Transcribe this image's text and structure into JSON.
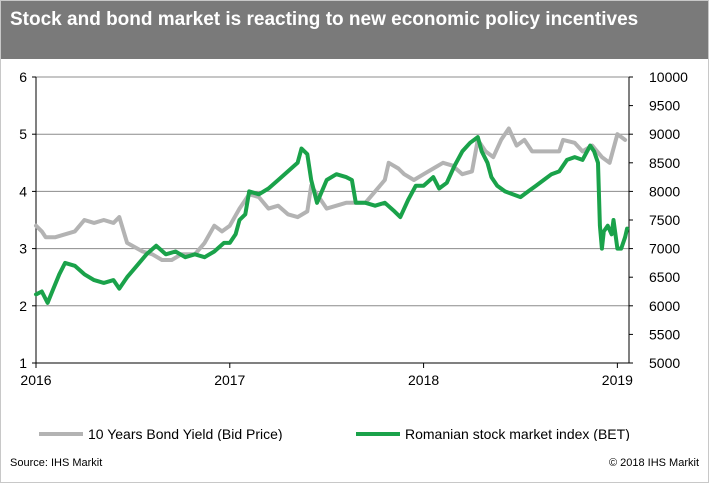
{
  "title": "Stock and bond market is reacting to new economic policy incentives",
  "source": "Source: IHS Markit",
  "copyright": "© 2018 IHS Markit",
  "colors": {
    "bond": "#b3b3b3",
    "stock": "#1aa24a",
    "header": "#7a7a7a"
  },
  "chart_data": {
    "type": "line",
    "x_ticks": [
      "2016",
      "2017",
      "2018",
      "2019"
    ],
    "y_left": {
      "range": [
        1,
        6
      ],
      "ticks": [
        "1",
        "2",
        "3",
        "4",
        "5",
        "6"
      ]
    },
    "y_right": {
      "range": [
        5000,
        10000
      ],
      "ticks": [
        "5000",
        "5500",
        "6000",
        "6500",
        "7000",
        "7500",
        "8000",
        "8500",
        "9000",
        "9500",
        "10000"
      ]
    },
    "grid": true,
    "legend_position": "bottom",
    "series": [
      {
        "name": "10 Years Bond Yield (Bid Price)",
        "axis": "left",
        "points": [
          [
            2016.0,
            3.4
          ],
          [
            2016.03,
            3.3
          ],
          [
            2016.05,
            3.2
          ],
          [
            2016.1,
            3.2
          ],
          [
            2016.15,
            3.25
          ],
          [
            2016.2,
            3.3
          ],
          [
            2016.25,
            3.5
          ],
          [
            2016.3,
            3.45
          ],
          [
            2016.35,
            3.5
          ],
          [
            2016.4,
            3.45
          ],
          [
            2016.43,
            3.55
          ],
          [
            2016.47,
            3.1
          ],
          [
            2016.55,
            2.95
          ],
          [
            2016.6,
            2.9
          ],
          [
            2016.65,
            2.8
          ],
          [
            2016.7,
            2.8
          ],
          [
            2016.75,
            2.9
          ],
          [
            2016.82,
            2.9
          ],
          [
            2016.87,
            3.1
          ],
          [
            2016.92,
            3.4
          ],
          [
            2016.96,
            3.3
          ],
          [
            2017.0,
            3.4
          ],
          [
            2017.05,
            3.7
          ],
          [
            2017.1,
            3.95
          ],
          [
            2017.15,
            3.9
          ],
          [
            2017.2,
            3.7
          ],
          [
            2017.25,
            3.75
          ],
          [
            2017.3,
            3.6
          ],
          [
            2017.35,
            3.55
          ],
          [
            2017.4,
            3.65
          ],
          [
            2017.42,
            4.1
          ],
          [
            2017.47,
            3.85
          ],
          [
            2017.5,
            3.7
          ],
          [
            2017.55,
            3.75
          ],
          [
            2017.6,
            3.8
          ],
          [
            2017.65,
            3.8
          ],
          [
            2017.7,
            3.8
          ],
          [
            2017.75,
            4.0
          ],
          [
            2017.8,
            4.2
          ],
          [
            2017.82,
            4.5
          ],
          [
            2017.87,
            4.4
          ],
          [
            2017.9,
            4.3
          ],
          [
            2017.95,
            4.2
          ],
          [
            2018.0,
            4.3
          ],
          [
            2018.05,
            4.4
          ],
          [
            2018.1,
            4.5
          ],
          [
            2018.15,
            4.45
          ],
          [
            2018.2,
            4.3
          ],
          [
            2018.25,
            4.35
          ],
          [
            2018.28,
            4.9
          ],
          [
            2018.32,
            4.7
          ],
          [
            2018.36,
            4.6
          ],
          [
            2018.4,
            4.9
          ],
          [
            2018.44,
            5.1
          ],
          [
            2018.48,
            4.8
          ],
          [
            2018.52,
            4.9
          ],
          [
            2018.56,
            4.7
          ],
          [
            2018.6,
            4.7
          ],
          [
            2018.65,
            4.7
          ],
          [
            2018.7,
            4.7
          ],
          [
            2018.72,
            4.9
          ],
          [
            2018.78,
            4.85
          ],
          [
            2018.82,
            4.7
          ],
          [
            2018.87,
            4.8
          ],
          [
            2018.92,
            4.6
          ],
          [
            2018.96,
            4.5
          ],
          [
            2019.0,
            5.0
          ],
          [
            2019.04,
            4.9
          ]
        ]
      },
      {
        "name": "Romanian stock market index (BET)",
        "axis": "right",
        "points": [
          [
            2016.0,
            6200
          ],
          [
            2016.03,
            6250
          ],
          [
            2016.06,
            6050
          ],
          [
            2016.09,
            6300
          ],
          [
            2016.12,
            6550
          ],
          [
            2016.15,
            6750
          ],
          [
            2016.2,
            6700
          ],
          [
            2016.25,
            6550
          ],
          [
            2016.3,
            6450
          ],
          [
            2016.35,
            6400
          ],
          [
            2016.4,
            6450
          ],
          [
            2016.43,
            6300
          ],
          [
            2016.47,
            6500
          ],
          [
            2016.52,
            6700
          ],
          [
            2016.57,
            6900
          ],
          [
            2016.62,
            7050
          ],
          [
            2016.67,
            6900
          ],
          [
            2016.72,
            6950
          ],
          [
            2016.77,
            6850
          ],
          [
            2016.82,
            6900
          ],
          [
            2016.87,
            6850
          ],
          [
            2016.92,
            6950
          ],
          [
            2016.97,
            7100
          ],
          [
            2017.0,
            7100
          ],
          [
            2017.03,
            7250
          ],
          [
            2017.05,
            7500
          ],
          [
            2017.08,
            7600
          ],
          [
            2017.1,
            8000
          ],
          [
            2017.15,
            7950
          ],
          [
            2017.2,
            8050
          ],
          [
            2017.25,
            8200
          ],
          [
            2017.3,
            8350
          ],
          [
            2017.35,
            8500
          ],
          [
            2017.37,
            8750
          ],
          [
            2017.4,
            8650
          ],
          [
            2017.42,
            8200
          ],
          [
            2017.45,
            7800
          ],
          [
            2017.5,
            8200
          ],
          [
            2017.55,
            8300
          ],
          [
            2017.6,
            8250
          ],
          [
            2017.63,
            8200
          ],
          [
            2017.65,
            7800
          ],
          [
            2017.7,
            7800
          ],
          [
            2017.75,
            7750
          ],
          [
            2017.8,
            7800
          ],
          [
            2017.85,
            7650
          ],
          [
            2017.88,
            7550
          ],
          [
            2017.92,
            7850
          ],
          [
            2017.96,
            8100
          ],
          [
            2018.0,
            8100
          ],
          [
            2018.05,
            8250
          ],
          [
            2018.08,
            8050
          ],
          [
            2018.12,
            8150
          ],
          [
            2018.16,
            8450
          ],
          [
            2018.2,
            8700
          ],
          [
            2018.24,
            8850
          ],
          [
            2018.28,
            8950
          ],
          [
            2018.3,
            8700
          ],
          [
            2018.33,
            8500
          ],
          [
            2018.35,
            8250
          ],
          [
            2018.38,
            8100
          ],
          [
            2018.42,
            8000
          ],
          [
            2018.46,
            7950
          ],
          [
            2018.5,
            7900
          ],
          [
            2018.54,
            8000
          ],
          [
            2018.58,
            8100
          ],
          [
            2018.62,
            8200
          ],
          [
            2018.66,
            8300
          ],
          [
            2018.7,
            8350
          ],
          [
            2018.74,
            8550
          ],
          [
            2018.78,
            8600
          ],
          [
            2018.82,
            8550
          ],
          [
            2018.86,
            8800
          ],
          [
            2018.88,
            8700
          ],
          [
            2018.9,
            8500
          ],
          [
            2018.91,
            7400
          ],
          [
            2018.92,
            7000
          ],
          [
            2018.93,
            7300
          ],
          [
            2018.95,
            7400
          ],
          [
            2018.97,
            7250
          ],
          [
            2018.98,
            7500
          ],
          [
            2019.0,
            7000
          ],
          [
            2019.02,
            7000
          ],
          [
            2019.04,
            7200
          ],
          [
            2019.05,
            7350
          ]
        ]
      }
    ]
  }
}
